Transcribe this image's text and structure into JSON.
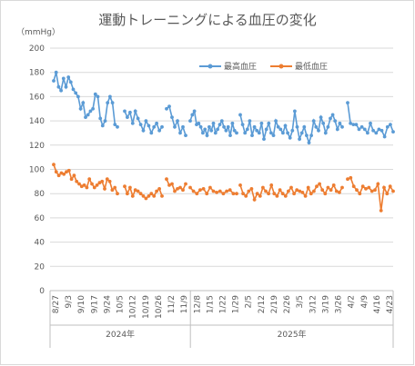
{
  "chart_data": {
    "type": "line",
    "title": "運動トレーニングによる血圧の変化",
    "unit_label": "（mmHg）",
    "ylim": [
      0,
      200
    ],
    "yticks": [
      0,
      20,
      40,
      60,
      80,
      100,
      120,
      140,
      160,
      180,
      200
    ],
    "grid": true,
    "legend_position": "top-right",
    "x_tick_labels": [
      "8/27",
      "9/3",
      "9/10",
      "9/17",
      "9/24",
      "10/5",
      "10/12",
      "10/19",
      "10/26",
      "11/2",
      "11/9",
      "12/8",
      "1/15",
      "1/22",
      "1/29",
      "2/5",
      "2/12",
      "2/19",
      "2/26",
      "3/5",
      "3/12",
      "3/19",
      "3/26",
      "4/2",
      "4/9",
      "4/16",
      "4/23"
    ],
    "year_labels": [
      "2024年",
      "2025年"
    ],
    "colors": {
      "systolic": "#5b9bd5",
      "diastolic": "#ed7d31",
      "grid": "#d9d9d9",
      "axis": "#bfbfbf"
    },
    "series": [
      {
        "name": "最高血圧",
        "segments": [
          [
            173,
            180,
            168,
            165,
            175,
            168,
            176,
            172,
            166,
            163,
            160,
            150,
            155,
            143,
            145,
            148,
            150,
            162,
            160,
            142,
            136,
            140,
            155,
            160,
            155,
            137,
            135
          ],
          [
            148,
            143,
            147,
            138,
            148,
            142,
            137,
            132,
            140,
            136,
            130,
            135,
            138,
            132,
            135
          ],
          [
            150,
            152,
            143,
            135,
            140,
            130,
            135,
            128
          ],
          [
            140,
            145,
            148,
            137,
            138,
            135,
            130,
            133,
            128,
            135,
            132,
            138,
            130,
            133,
            137,
            140,
            135,
            132,
            135,
            128,
            138,
            132,
            130
          ],
          [
            145,
            137,
            130,
            133,
            140,
            128,
            135,
            132,
            130,
            138,
            125,
            133,
            138,
            130,
            128,
            140,
            135,
            133,
            130,
            136,
            130,
            126,
            132,
            148,
            135,
            125,
            130,
            135,
            128,
            122,
            128,
            140,
            135,
            132,
            143,
            138,
            130,
            135,
            142,
            145,
            140,
            133,
            138,
            135
          ],
          [
            155,
            138,
            137,
            137,
            133,
            135,
            133,
            130,
            138,
            132,
            130,
            133,
            132,
            127,
            135,
            137,
            131
          ]
        ]
      },
      {
        "name": "最低血圧",
        "segments": [
          [
            104,
            98,
            95,
            97,
            96,
            98,
            99,
            92,
            95,
            90,
            88,
            86,
            87,
            85,
            92,
            88,
            85,
            87,
            89,
            90,
            84,
            92,
            90,
            83,
            85,
            80
          ],
          [
            86,
            80,
            85,
            78,
            83,
            82,
            80,
            78,
            76,
            78,
            80,
            78,
            82,
            84,
            78
          ],
          [
            92,
            87,
            88,
            82,
            84,
            85,
            83,
            88
          ],
          [
            85,
            82,
            80,
            83,
            84,
            80,
            85,
            82,
            81,
            82,
            80,
            82,
            83,
            80,
            80
          ],
          [
            87,
            80,
            78,
            82,
            84,
            75,
            80,
            78,
            85,
            82,
            80,
            87,
            80,
            78,
            83,
            80,
            78,
            82,
            85,
            80,
            83,
            82,
            81,
            78,
            85,
            80,
            82,
            86,
            88,
            83,
            80,
            85,
            83,
            87,
            82,
            81,
            85
          ],
          [
            92,
            93,
            86,
            83,
            80,
            86,
            84,
            85,
            82,
            83,
            88,
            66,
            85,
            80,
            86,
            82
          ]
        ]
      }
    ]
  }
}
